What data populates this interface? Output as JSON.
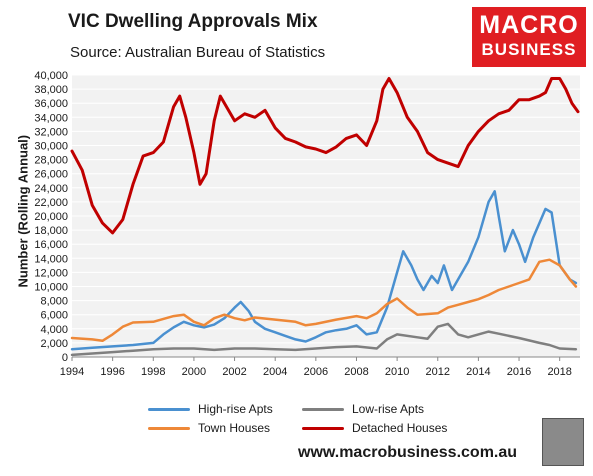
{
  "header": {
    "title": "VIC Dwelling Approvals Mix",
    "subtitle": "Source: Australian Bureau of Statistics",
    "logo_line1": "MACRO",
    "logo_line2": "BUSINESS"
  },
  "footer": {
    "url": "www.macrobusiness.com.au"
  },
  "colors": {
    "high_rise": "#4a90d0",
    "low_rise": "#7f7f7f",
    "town_houses": "#ee8838",
    "detached": "#c00000",
    "logo_bg": "#e01e22"
  },
  "chart_data": {
    "type": "line",
    "ylabel": "Number (Rolling Annual)",
    "xlabel": "",
    "ylim": [
      0,
      40000
    ],
    "xlim": [
      1994,
      2019
    ],
    "y_ticks": [
      "0",
      "2,000",
      "4,000",
      "6,000",
      "8,000",
      "10,000",
      "12,000",
      "14,000",
      "16,000",
      "18,000",
      "20,000",
      "22,000",
      "24,000",
      "26,000",
      "28,000",
      "30,000",
      "32,000",
      "34,000",
      "36,000",
      "38,000",
      "40,000"
    ],
    "x_ticks": [
      "1994",
      "1996",
      "1998",
      "2000",
      "2002",
      "2004",
      "2006",
      "2008",
      "2010",
      "2012",
      "2014",
      "2016",
      "2018"
    ],
    "grid": true,
    "legend": "bottom",
    "series": [
      {
        "name": "High-rise Apts",
        "points": [
          [
            1994,
            1100
          ],
          [
            1995,
            1300
          ],
          [
            1996,
            1500
          ],
          [
            1997,
            1700
          ],
          [
            1998,
            2000
          ],
          [
            1998.5,
            3200
          ],
          [
            1999,
            4200
          ],
          [
            1999.5,
            5000
          ],
          [
            2000,
            4500
          ],
          [
            2000.5,
            4200
          ],
          [
            2001,
            4600
          ],
          [
            2001.5,
            5500
          ],
          [
            2002,
            7000
          ],
          [
            2002.3,
            7800
          ],
          [
            2002.7,
            6500
          ],
          [
            2003,
            5000
          ],
          [
            2003.5,
            4000
          ],
          [
            2004,
            3500
          ],
          [
            2004.5,
            3000
          ],
          [
            2005,
            2500
          ],
          [
            2005.5,
            2200
          ],
          [
            2006,
            2800
          ],
          [
            2006.5,
            3500
          ],
          [
            2007,
            3800
          ],
          [
            2007.5,
            4000
          ],
          [
            2008,
            4500
          ],
          [
            2008.5,
            3200
          ],
          [
            2009,
            3500
          ],
          [
            2009.5,
            7000
          ],
          [
            2010,
            12000
          ],
          [
            2010.3,
            15000
          ],
          [
            2010.7,
            13000
          ],
          [
            2011,
            11000
          ],
          [
            2011.3,
            9500
          ],
          [
            2011.7,
            11500
          ],
          [
            2012,
            10500
          ],
          [
            2012.3,
            13000
          ],
          [
            2012.7,
            9500
          ],
          [
            2013,
            11000
          ],
          [
            2013.5,
            13500
          ],
          [
            2014,
            17000
          ],
          [
            2014.5,
            22000
          ],
          [
            2014.8,
            23500
          ],
          [
            2015,
            20000
          ],
          [
            2015.3,
            15000
          ],
          [
            2015.7,
            18000
          ],
          [
            2016,
            16000
          ],
          [
            2016.3,
            13500
          ],
          [
            2016.7,
            17000
          ],
          [
            2017,
            19000
          ],
          [
            2017.3,
            21000
          ],
          [
            2017.6,
            20500
          ],
          [
            2018,
            13000
          ],
          [
            2018.5,
            11000
          ],
          [
            2018.8,
            10500
          ]
        ]
      },
      {
        "name": "Low-rise Apts",
        "points": [
          [
            1994,
            300
          ],
          [
            1995,
            500
          ],
          [
            1996,
            700
          ],
          [
            1997,
            900
          ],
          [
            1998,
            1100
          ],
          [
            1999,
            1200
          ],
          [
            2000,
            1200
          ],
          [
            2001,
            1000
          ],
          [
            2002,
            1200
          ],
          [
            2003,
            1200
          ],
          [
            2004,
            1100
          ],
          [
            2005,
            1000
          ],
          [
            2006,
            1200
          ],
          [
            2007,
            1400
          ],
          [
            2008,
            1500
          ],
          [
            2009,
            1200
          ],
          [
            2009.5,
            2500
          ],
          [
            2010,
            3200
          ],
          [
            2011,
            2800
          ],
          [
            2011.5,
            2600
          ],
          [
            2012,
            4300
          ],
          [
            2012.5,
            4700
          ],
          [
            2013,
            3200
          ],
          [
            2013.5,
            2800
          ],
          [
            2014,
            3200
          ],
          [
            2014.5,
            3600
          ],
          [
            2015,
            3300
          ],
          [
            2016,
            2700
          ],
          [
            2017,
            2000
          ],
          [
            2017.5,
            1700
          ],
          [
            2018,
            1200
          ],
          [
            2018.8,
            1100
          ]
        ]
      },
      {
        "name": "Town Houses",
        "points": [
          [
            1994,
            2700
          ],
          [
            1995,
            2500
          ],
          [
            1995.5,
            2300
          ],
          [
            1996,
            3200
          ],
          [
            1996.5,
            4300
          ],
          [
            1997,
            4900
          ],
          [
            1998,
            5000
          ],
          [
            1998.5,
            5400
          ],
          [
            1999,
            5800
          ],
          [
            1999.5,
            6000
          ],
          [
            2000,
            5000
          ],
          [
            2000.5,
            4500
          ],
          [
            2001,
            5500
          ],
          [
            2001.5,
            6000
          ],
          [
            2002,
            5500
          ],
          [
            2002.5,
            5200
          ],
          [
            2003,
            5600
          ],
          [
            2004,
            5300
          ],
          [
            2005,
            5000
          ],
          [
            2005.5,
            4500
          ],
          [
            2006,
            4700
          ],
          [
            2007,
            5300
          ],
          [
            2008,
            5800
          ],
          [
            2008.5,
            5500
          ],
          [
            2009,
            6200
          ],
          [
            2009.5,
            7500
          ],
          [
            2010,
            8300
          ],
          [
            2010.5,
            7000
          ],
          [
            2011,
            6000
          ],
          [
            2012,
            6200
          ],
          [
            2012.5,
            7000
          ],
          [
            2013,
            7400
          ],
          [
            2013.5,
            7800
          ],
          [
            2014,
            8200
          ],
          [
            2014.5,
            8800
          ],
          [
            2015,
            9500
          ],
          [
            2015.5,
            10000
          ],
          [
            2016,
            10500
          ],
          [
            2016.5,
            11000
          ],
          [
            2017,
            13500
          ],
          [
            2017.5,
            13800
          ],
          [
            2018,
            13000
          ],
          [
            2018.5,
            11000
          ],
          [
            2018.8,
            10000
          ]
        ]
      },
      {
        "name": "Detached Houses",
        "points": [
          [
            1994,
            29200
          ],
          [
            1994.5,
            26500
          ],
          [
            1995,
            21500
          ],
          [
            1995.5,
            19000
          ],
          [
            1996,
            17600
          ],
          [
            1996.5,
            19500
          ],
          [
            1997,
            24500
          ],
          [
            1997.5,
            28500
          ],
          [
            1998,
            29000
          ],
          [
            1998.5,
            30500
          ],
          [
            1999,
            35500
          ],
          [
            1999.3,
            37000
          ],
          [
            1999.6,
            34000
          ],
          [
            2000,
            29000
          ],
          [
            2000.3,
            24500
          ],
          [
            2000.6,
            26000
          ],
          [
            2001,
            33500
          ],
          [
            2001.3,
            37000
          ],
          [
            2001.7,
            35000
          ],
          [
            2002,
            33500
          ],
          [
            2002.5,
            34500
          ],
          [
            2003,
            34000
          ],
          [
            2003.5,
            35000
          ],
          [
            2004,
            32500
          ],
          [
            2004.5,
            31000
          ],
          [
            2005,
            30500
          ],
          [
            2005.5,
            29800
          ],
          [
            2006,
            29500
          ],
          [
            2006.5,
            29000
          ],
          [
            2007,
            29800
          ],
          [
            2007.5,
            31000
          ],
          [
            2008,
            31500
          ],
          [
            2008.5,
            30000
          ],
          [
            2009,
            33500
          ],
          [
            2009.3,
            38000
          ],
          [
            2009.6,
            39500
          ],
          [
            2010,
            37500
          ],
          [
            2010.5,
            34000
          ],
          [
            2011,
            32000
          ],
          [
            2011.5,
            29000
          ],
          [
            2012,
            28000
          ],
          [
            2012.5,
            27500
          ],
          [
            2013,
            27000
          ],
          [
            2013.5,
            30000
          ],
          [
            2014,
            32000
          ],
          [
            2014.5,
            33500
          ],
          [
            2015,
            34500
          ],
          [
            2015.5,
            35000
          ],
          [
            2016,
            36500
          ],
          [
            2016.5,
            36500
          ],
          [
            2017,
            37000
          ],
          [
            2017.3,
            37500
          ],
          [
            2017.6,
            39500
          ],
          [
            2018,
            39500
          ],
          [
            2018.3,
            38000
          ],
          [
            2018.6,
            36000
          ],
          [
            2018.9,
            34800
          ]
        ]
      }
    ]
  }
}
